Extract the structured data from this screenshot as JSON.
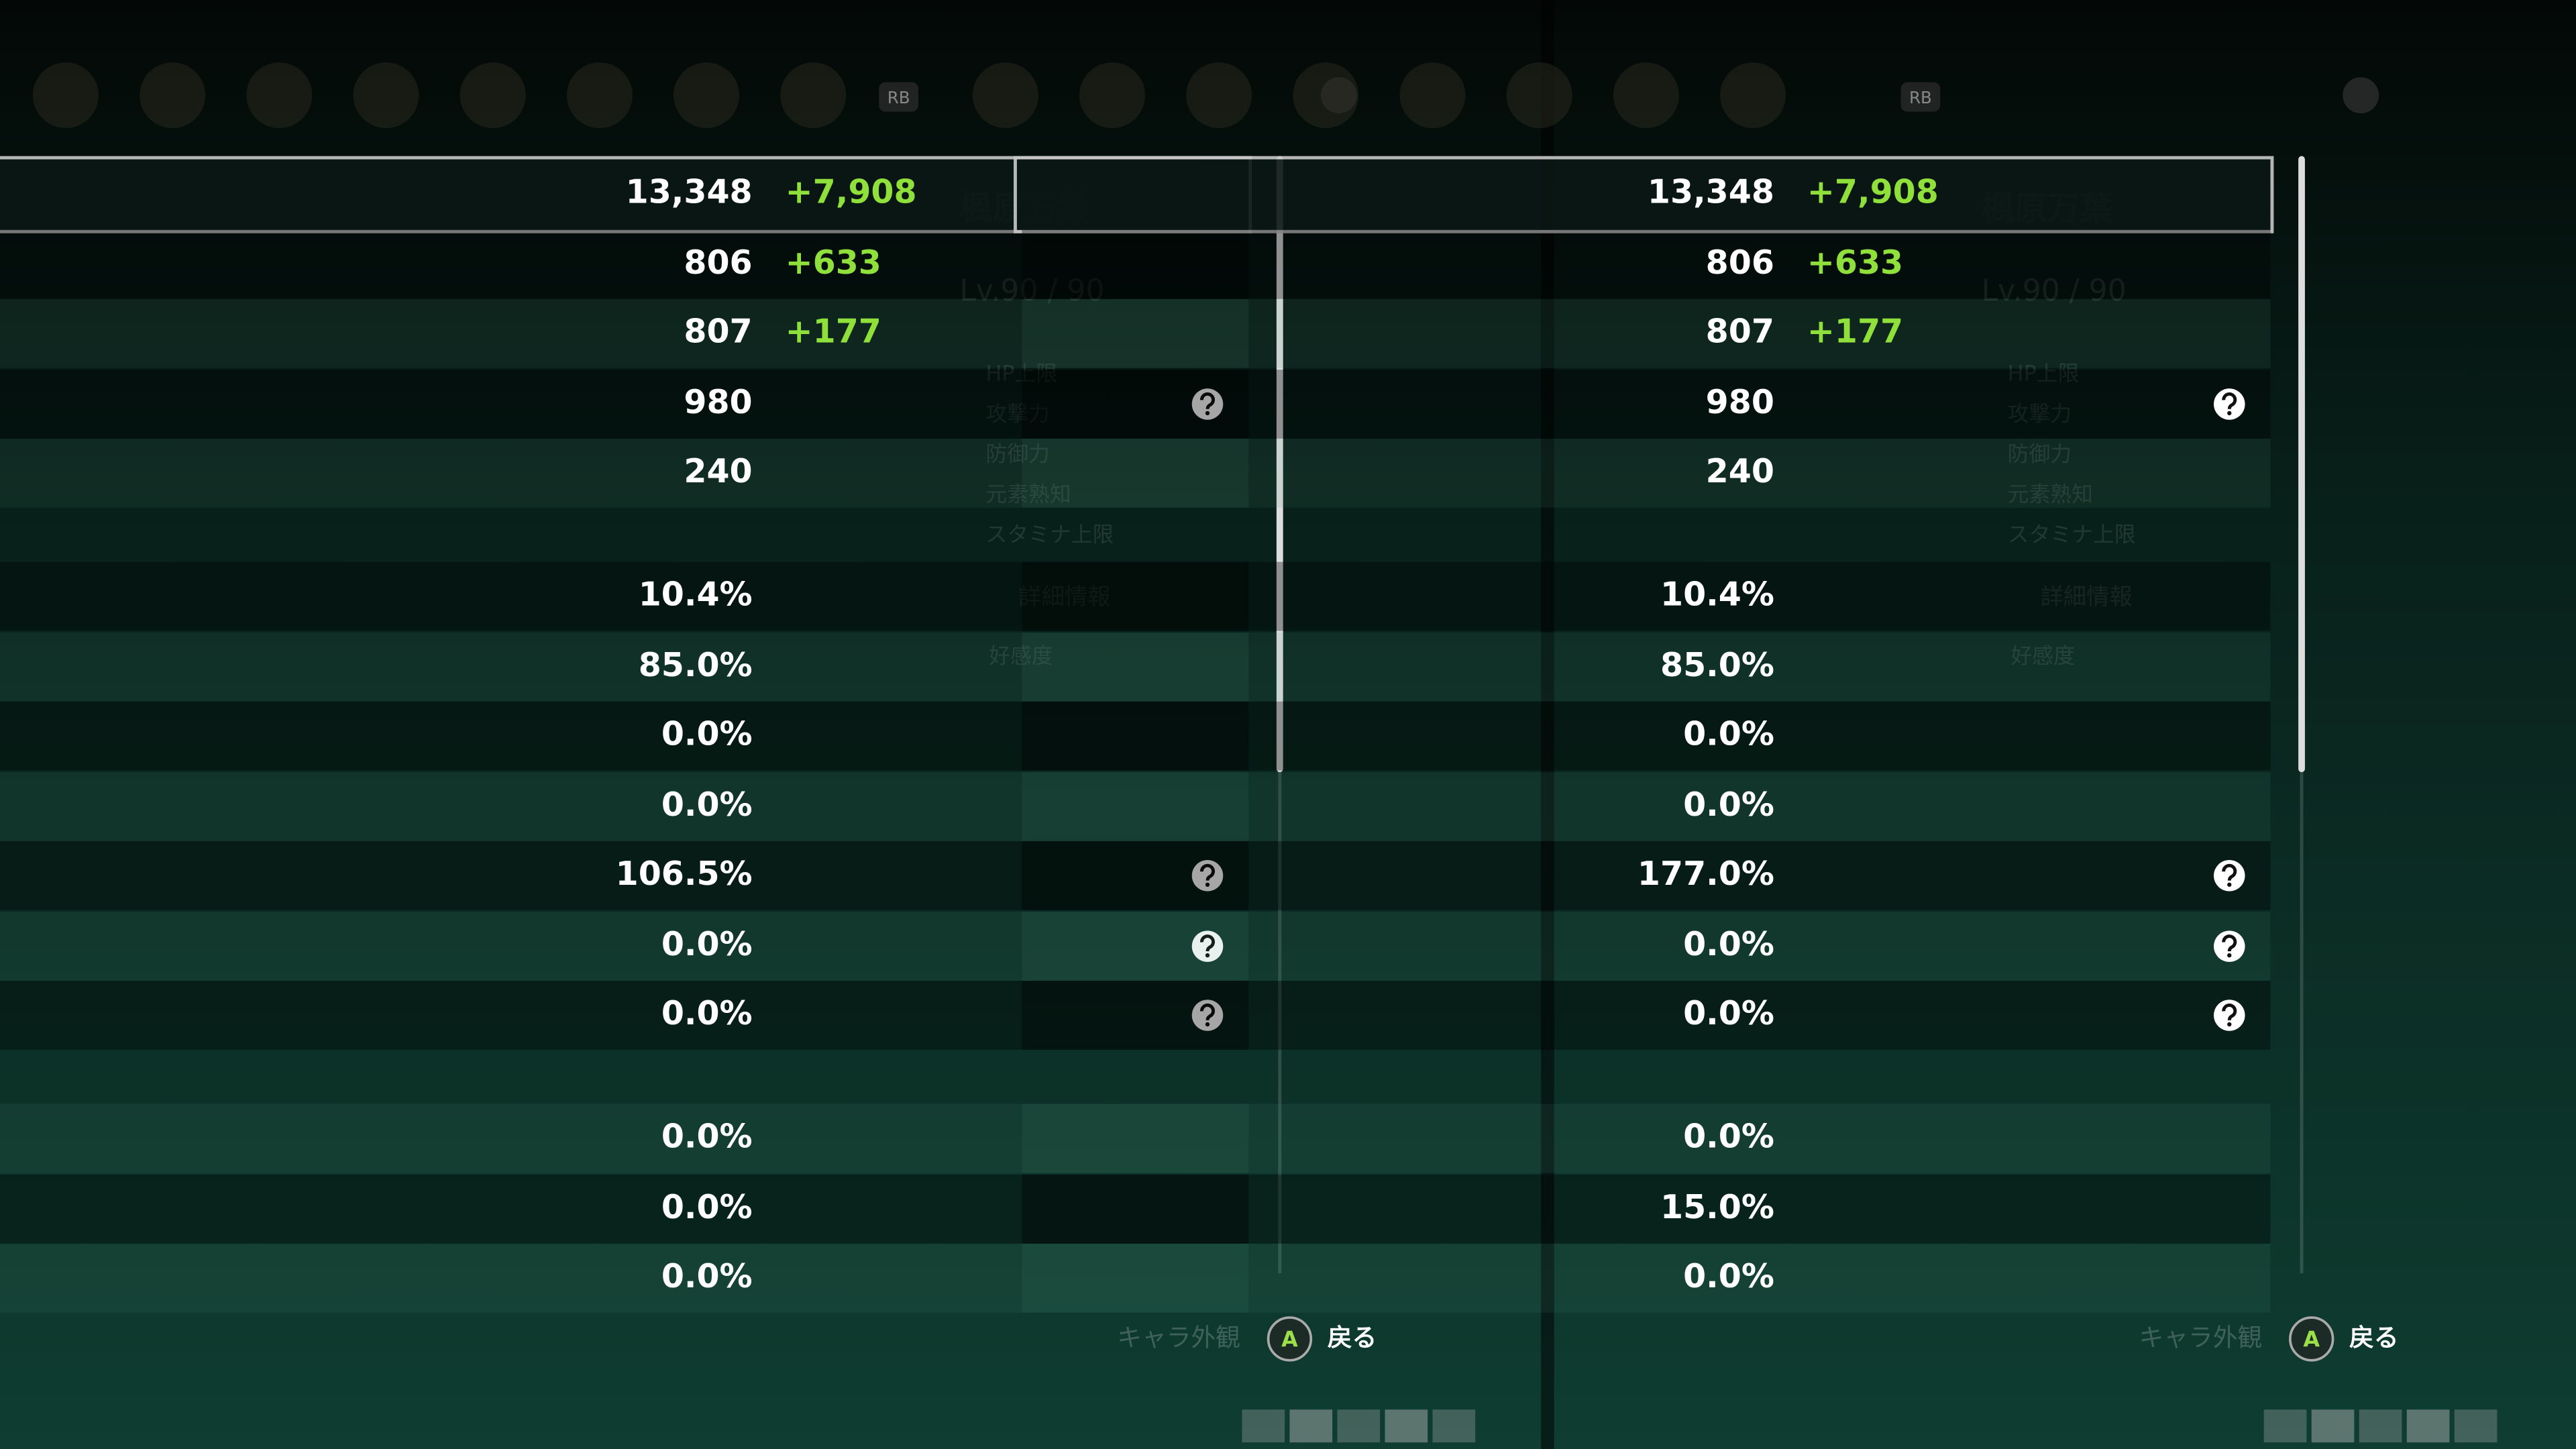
{
  "panels": [
    {
      "name": "楓原万葉",
      "level": "Lv.90 / 90",
      "stat_labels": [
        "HP上限",
        "攻撃力",
        "防御力",
        "元素熟知",
        "スタミナ上限"
      ],
      "details": "詳細情報",
      "friendship": "好感度",
      "tab_button": "RB",
      "rows": [
        {
          "value": "13,348",
          "bonus": "+7,908"
        },
        {
          "value": "806",
          "bonus": "+633"
        },
        {
          "value": "807",
          "bonus": "+177"
        },
        {
          "value": "980",
          "help": true
        },
        {
          "value": "240"
        },
        {
          "value": "10.4%"
        },
        {
          "value": "85.0%"
        },
        {
          "value": "0.0%"
        },
        {
          "value": "0.0%"
        },
        {
          "value": "106.5%",
          "help": true
        },
        {
          "value": "0.0%",
          "help": true
        },
        {
          "value": "0.0%",
          "help": true
        },
        {
          "value": "0.0%"
        },
        {
          "value": "0.0%"
        },
        {
          "value": "0.0%"
        }
      ],
      "footer": {
        "appearance": "キャラ外観",
        "button": "A",
        "back": "戻る"
      }
    },
    {
      "name": "楓原万葉",
      "level": "Lv.90 / 90",
      "stat_labels": [
        "HP上限",
        "攻撃力",
        "防御力",
        "元素熟知",
        "スタミナ上限"
      ],
      "details": "詳細情報",
      "friendship": "好感度",
      "tab_button": "RB",
      "rows": [
        {
          "value": "13,348",
          "bonus": "+7,908"
        },
        {
          "value": "806",
          "bonus": "+633"
        },
        {
          "value": "807",
          "bonus": "+177"
        },
        {
          "value": "980",
          "help": true
        },
        {
          "value": "240"
        },
        {
          "value": "10.4%"
        },
        {
          "value": "85.0%"
        },
        {
          "value": "0.0%"
        },
        {
          "value": "0.0%"
        },
        {
          "value": "177.0%",
          "help": true
        },
        {
          "value": "0.0%",
          "help": true
        },
        {
          "value": "0.0%",
          "help": true
        },
        {
          "value": "0.0%"
        },
        {
          "value": "15.0%"
        },
        {
          "value": "0.0%"
        }
      ],
      "footer": {
        "appearance": "キャラ外観",
        "button": "A",
        "back": "戻る"
      }
    }
  ]
}
